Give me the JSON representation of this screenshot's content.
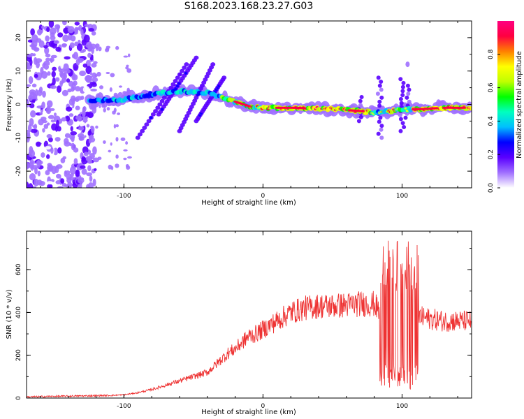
{
  "title": "S168.2023.168.23.27.G03",
  "chart_data": [
    {
      "type": "heatmap",
      "xlabel": "Height of straight line (km)",
      "ylabel": "Frequency (Hz)",
      "xlim": [
        -170,
        150
      ],
      "ylim": [
        -25,
        25
      ],
      "x_ticks": [
        {
          "v": -100,
          "label": "-100"
        },
        {
          "v": 0,
          "label": "0"
        },
        {
          "v": 100,
          "label": "100"
        }
      ],
      "y_ticks": [
        {
          "v": 20,
          "label": "20"
        },
        {
          "v": 10,
          "label": "10"
        },
        {
          "v": 0,
          "label": "0"
        },
        {
          "v": -10,
          "label": "-10"
        },
        {
          "v": -20,
          "label": "-20"
        }
      ],
      "colorbar": {
        "label": "Normalized spectral amplitude",
        "range": [
          0,
          1
        ],
        "ticks": [
          {
            "v": 0.0,
            "label": "0.0"
          },
          {
            "v": 0.2,
            "label": "0.2"
          },
          {
            "v": 0.4,
            "label": "0.4"
          },
          {
            "v": 0.6,
            "label": "0.6"
          },
          {
            "v": 0.8,
            "label": "0.8"
          }
        ],
        "colors": [
          "#ffffff",
          "#a070ff",
          "#5a00ff",
          "#0000ff",
          "#00bfff",
          "#00ffbf",
          "#00ff00",
          "#bfff00",
          "#ffff00",
          "#ff8000",
          "#ff0040",
          "#ff0080"
        ]
      },
      "ridge": [
        {
          "x": -125,
          "f": 1.0
        },
        {
          "x": -100,
          "f": 1.5
        },
        {
          "x": -80,
          "f": 3.0
        },
        {
          "x": -60,
          "f": 4.0
        },
        {
          "x": -40,
          "f": 3.5
        },
        {
          "x": -25,
          "f": 1.5
        },
        {
          "x": -10,
          "f": -0.5
        },
        {
          "x": 0,
          "f": -1.0
        },
        {
          "x": 20,
          "f": -1.0
        },
        {
          "x": 40,
          "f": -1.2
        },
        {
          "x": 55,
          "f": -1.5
        },
        {
          "x": 70,
          "f": -2.0
        },
        {
          "x": 80,
          "f": -2.5
        },
        {
          "x": 90,
          "f": -2.0
        },
        {
          "x": 100,
          "f": -1.5
        },
        {
          "x": 110,
          "f": -1.5
        },
        {
          "x": 130,
          "f": -1.0
        },
        {
          "x": 150,
          "f": -1.0
        }
      ]
    },
    {
      "type": "line",
      "xlabel": "Height of straight line (km)",
      "ylabel": "SNR (10 * v/v)",
      "xlim": [
        -170,
        150
      ],
      "ylim": [
        0,
        780
      ],
      "x_ticks": [
        {
          "v": -100,
          "label": "-100"
        },
        {
          "v": 0,
          "label": "0"
        },
        {
          "v": 100,
          "label": "100"
        }
      ],
      "y_ticks": [
        {
          "v": 0,
          "label": "0"
        },
        {
          "v": 200,
          "label": "200"
        },
        {
          "v": 400,
          "label": "400"
        },
        {
          "v": 600,
          "label": "600"
        }
      ],
      "color": "#ee3333",
      "series": [
        {
          "x": [
            -170,
            -150,
            -130,
            -110,
            -100,
            -90,
            -80,
            -70,
            -60,
            -50,
            -40,
            -35,
            -30,
            -25,
            -20,
            -15,
            -10,
            -5,
            0,
            5,
            10,
            15,
            20,
            25,
            30,
            40,
            50,
            60,
            70,
            80,
            84,
            86,
            88,
            90,
            92,
            94,
            96,
            100,
            104,
            106,
            108,
            110,
            112,
            120,
            130,
            140,
            150
          ],
          "y": [
            5,
            8,
            10,
            12,
            15,
            25,
            40,
            60,
            80,
            100,
            120,
            150,
            180,
            210,
            230,
            260,
            290,
            300,
            320,
            340,
            360,
            380,
            400,
            410,
            420,
            430,
            430,
            435,
            440,
            440,
            400,
            420,
            250,
            150,
            480,
            120,
            300,
            480,
            150,
            260,
            120,
            300,
            380,
            370,
            360,
            360,
            360
          ]
        }
      ]
    }
  ]
}
